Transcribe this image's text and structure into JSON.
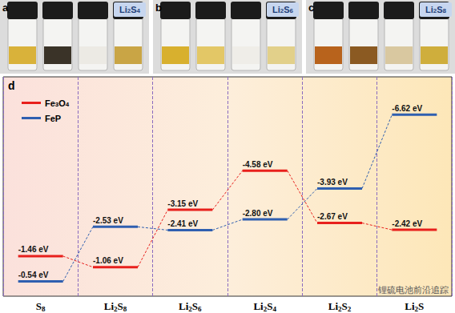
{
  "chart_data": {
    "type": "energy_level",
    "panel_label": "d",
    "categories": [
      "S8",
      "Li2S8",
      "Li2S6",
      "Li2S4",
      "Li2S2",
      "Li2S"
    ],
    "series": [
      {
        "name": "Fe3O4",
        "color": "#e8201c",
        "values": [
          -1.46,
          -1.06,
          -3.15,
          -4.58,
          -2.67,
          -2.42
        ],
        "value_labels": [
          "-1.46 eV",
          "-1.06 eV",
          "-3.15 eV",
          "-4.58 eV",
          "-2.67 eV",
          "-2.42 eV"
        ]
      },
      {
        "name": "FeP",
        "color": "#2f5fb0",
        "values": [
          -0.54,
          -2.53,
          -2.41,
          -2.8,
          -3.93,
          -6.62
        ],
        "value_labels": [
          "-0.54 eV",
          "-2.53 eV",
          "-2.41 eV",
          "-2.80 eV",
          "-3.93 eV",
          "-6.62 eV"
        ]
      }
    ],
    "ylim": [
      -8,
      0
    ],
    "tick_labels": false,
    "grid": true,
    "legend": "upper left",
    "data_labels": true
  },
  "photos": [
    {
      "label": "a",
      "tag": "Li2S4"
    },
    {
      "label": "b",
      "tag": "Li2S6"
    },
    {
      "label": "c",
      "tag": "Li2S8"
    }
  ],
  "watermark": "锂硫电池前沿追踪"
}
